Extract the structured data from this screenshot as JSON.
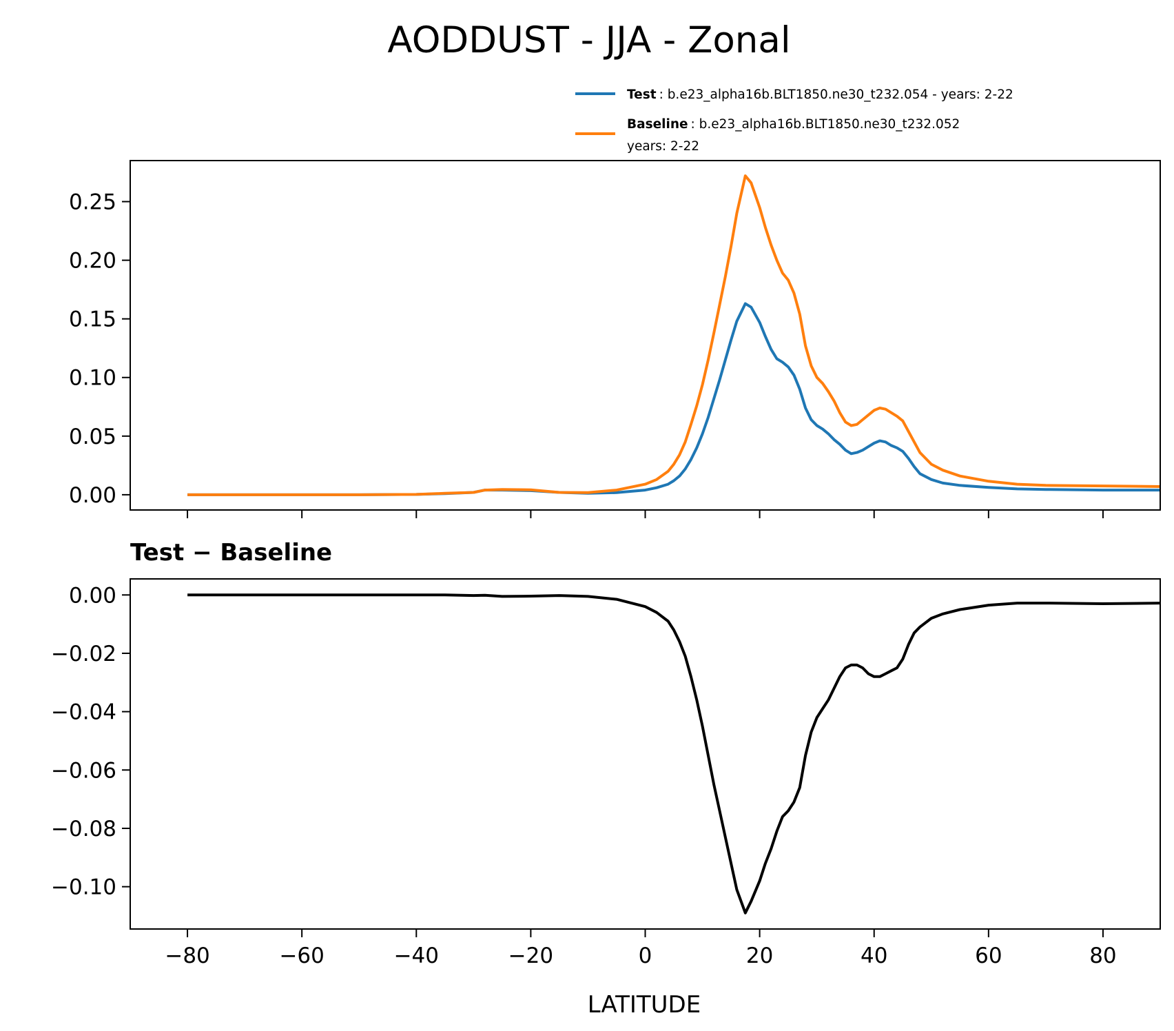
{
  "chart_data": [
    {
      "type": "line",
      "title": "AODDUST - JJA - Zonal",
      "xlabel": "",
      "ylabel": "",
      "xlim": [
        -90,
        90
      ],
      "ylim": [
        -0.013,
        0.285
      ],
      "x_ticks": [
        -80,
        -60,
        -40,
        -20,
        0,
        20,
        40,
        60,
        80
      ],
      "y_ticks": [
        0.0,
        0.05,
        0.1,
        0.15,
        0.2,
        0.25
      ],
      "y_tick_labels": [
        "0.00",
        "0.05",
        "0.10",
        "0.15",
        "0.20",
        "0.25"
      ],
      "grid": false,
      "legend": {
        "placement": "above-right",
        "entries": [
          {
            "name": "Test",
            "detail": ": b.e23_alpha16b.BLT1850.ne30_t232.054 - years: 2-22"
          },
          {
            "name": "Baseline",
            "detail": ": b.e23_alpha16b.BLT1850.ne30_t232.052",
            "detail2": "years: 2-22"
          }
        ]
      },
      "series": [
        {
          "name": "Test",
          "color": "#1f77b4",
          "x": [
            -80,
            -70,
            -60,
            -50,
            -40,
            -35,
            -30,
            -28,
            -25,
            -20,
            -15,
            -10,
            -5,
            0,
            2,
            4,
            5,
            6,
            7,
            8,
            9,
            10,
            11,
            12,
            13,
            14,
            15,
            16,
            17.5,
            18.5,
            20,
            21,
            22,
            23,
            24,
            25,
            26,
            27,
            28,
            29,
            30,
            31,
            32,
            33,
            34,
            35,
            36,
            37,
            38,
            39,
            40,
            41,
            42,
            43,
            44,
            45,
            46,
            47,
            48,
            50,
            52,
            55,
            60,
            65,
            70,
            80,
            90
          ],
          "y": [
            0.0,
            0.0,
            0.0,
            0.0,
            0.0003,
            0.001,
            0.002,
            0.004,
            0.004,
            0.0035,
            0.002,
            0.0012,
            0.0018,
            0.004,
            0.006,
            0.009,
            0.012,
            0.016,
            0.022,
            0.03,
            0.04,
            0.052,
            0.066,
            0.082,
            0.098,
            0.115,
            0.132,
            0.148,
            0.163,
            0.16,
            0.147,
            0.135,
            0.124,
            0.116,
            0.113,
            0.109,
            0.102,
            0.09,
            0.074,
            0.064,
            0.059,
            0.056,
            0.052,
            0.047,
            0.043,
            0.038,
            0.035,
            0.036,
            0.038,
            0.041,
            0.044,
            0.046,
            0.045,
            0.042,
            0.04,
            0.037,
            0.031,
            0.024,
            0.018,
            0.013,
            0.01,
            0.008,
            0.0062,
            0.005,
            0.0045,
            0.004,
            0.004
          ]
        },
        {
          "name": "Baseline",
          "color": "#ff7f0e",
          "x": [
            -80,
            -70,
            -60,
            -50,
            -40,
            -35,
            -30,
            -28,
            -25,
            -20,
            -15,
            -10,
            -5,
            0,
            2,
            4,
            5,
            6,
            7,
            8,
            9,
            10,
            11,
            12,
            13,
            14,
            15,
            16,
            17.5,
            18.5,
            20,
            21,
            22,
            23,
            24,
            25,
            26,
            27,
            28,
            29,
            30,
            31,
            32,
            33,
            34,
            35,
            36,
            37,
            38,
            39,
            40,
            41,
            42,
            43,
            44,
            45,
            46,
            47,
            48,
            50,
            52,
            55,
            60,
            65,
            70,
            80,
            90
          ],
          "y": [
            0.0,
            0.0,
            0.0,
            0.0,
            0.0003,
            0.0012,
            0.002,
            0.004,
            0.0045,
            0.0042,
            0.002,
            0.0018,
            0.004,
            0.009,
            0.013,
            0.02,
            0.026,
            0.034,
            0.045,
            0.06,
            0.076,
            0.094,
            0.115,
            0.138,
            0.162,
            0.186,
            0.212,
            0.24,
            0.272,
            0.266,
            0.245,
            0.228,
            0.213,
            0.2,
            0.189,
            0.183,
            0.172,
            0.154,
            0.127,
            0.11,
            0.1,
            0.095,
            0.088,
            0.08,
            0.07,
            0.062,
            0.059,
            0.06,
            0.064,
            0.068,
            0.072,
            0.074,
            0.073,
            0.07,
            0.067,
            0.063,
            0.054,
            0.045,
            0.036,
            0.026,
            0.021,
            0.016,
            0.0115,
            0.009,
            0.008,
            0.0075,
            0.007
          ]
        }
      ]
    },
    {
      "type": "line",
      "title": "Test − Baseline",
      "xlabel": "LATITUDE",
      "ylabel": "",
      "xlim": [
        -90,
        90
      ],
      "ylim": [
        -0.1145,
        0.0055
      ],
      "x_ticks": [
        -80,
        -60,
        -40,
        -20,
        0,
        20,
        40,
        60,
        80
      ],
      "x_tick_labels": [
        "−80",
        "−60",
        "−40",
        "−20",
        "0",
        "20",
        "40",
        "60",
        "80"
      ],
      "y_ticks": [
        0.0,
        -0.02,
        -0.04,
        -0.06,
        -0.08,
        -0.1
      ],
      "y_tick_labels": [
        "0.00",
        "−0.02",
        "−0.04",
        "−0.06",
        "−0.08",
        "−0.10"
      ],
      "grid": false,
      "series": [
        {
          "color": "#000000",
          "x": [
            -80,
            -70,
            -60,
            -50,
            -40,
            -35,
            -30,
            -28,
            -25,
            -20,
            -15,
            -10,
            -5,
            0,
            2,
            4,
            5,
            6,
            7,
            8,
            9,
            10,
            11,
            12,
            13,
            14,
            15,
            16,
            17.5,
            18.5,
            20,
            21,
            22,
            23,
            24,
            25,
            26,
            27,
            28,
            29,
            30,
            31,
            32,
            33,
            34,
            35,
            36,
            37,
            38,
            39,
            40,
            41,
            42,
            43,
            44,
            45,
            46,
            47,
            48,
            50,
            52,
            55,
            60,
            65,
            70,
            80,
            90
          ],
          "y": [
            0.0,
            0.0,
            0.0,
            0.0,
            0.0,
            0.0,
            -0.0002,
            -0.0001,
            -0.0005,
            -0.0004,
            -0.0002,
            -0.0005,
            -0.0015,
            -0.004,
            -0.006,
            -0.009,
            -0.012,
            -0.016,
            -0.021,
            -0.028,
            -0.036,
            -0.045,
            -0.055,
            -0.065,
            -0.074,
            -0.083,
            -0.092,
            -0.101,
            -0.109,
            -0.105,
            -0.098,
            -0.092,
            -0.087,
            -0.081,
            -0.076,
            -0.074,
            -0.071,
            -0.066,
            -0.055,
            -0.047,
            -0.042,
            -0.039,
            -0.036,
            -0.032,
            -0.028,
            -0.025,
            -0.024,
            -0.024,
            -0.025,
            -0.027,
            -0.028,
            -0.028,
            -0.027,
            -0.026,
            -0.025,
            -0.022,
            -0.017,
            -0.013,
            -0.011,
            -0.008,
            -0.0065,
            -0.005,
            -0.0035,
            -0.0028,
            -0.0028,
            -0.003,
            -0.0028
          ]
        }
      ]
    }
  ]
}
